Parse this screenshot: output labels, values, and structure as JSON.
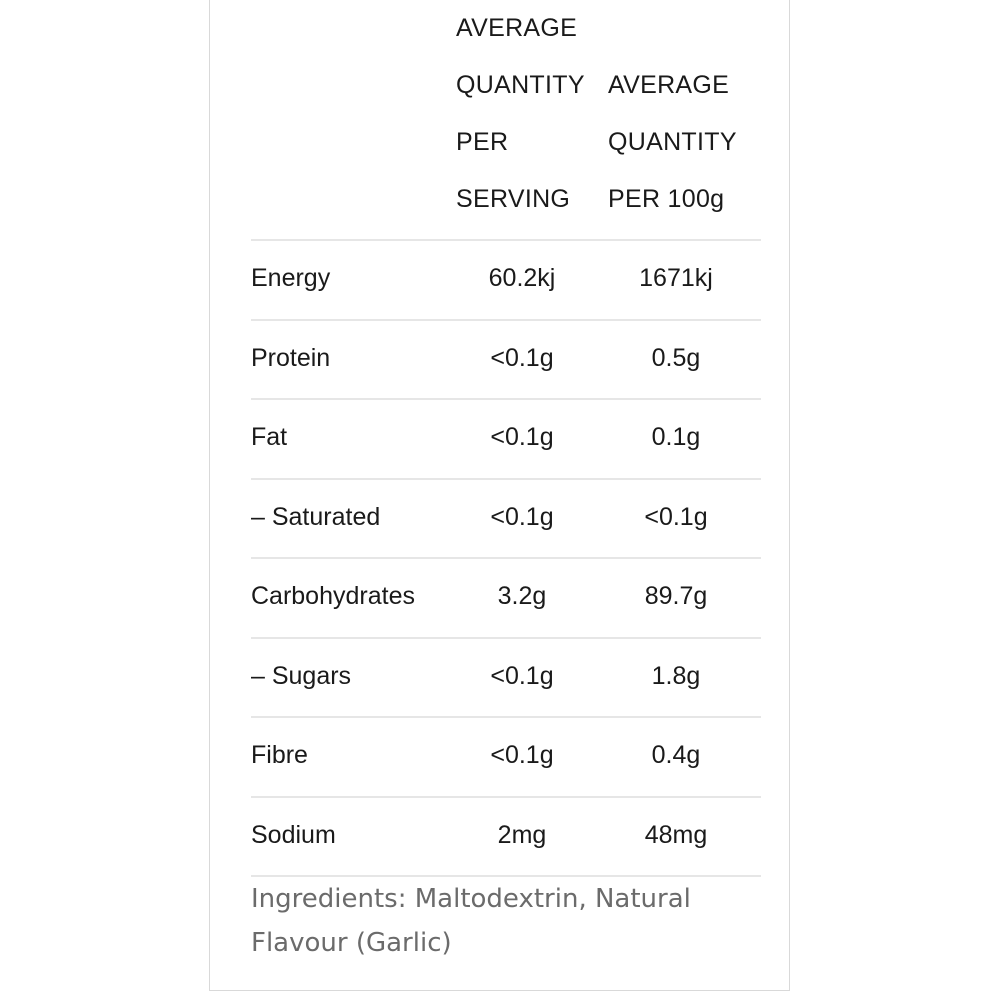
{
  "table": {
    "headers": [
      [
        "AVERAGE",
        "QUANTITY",
        "PER",
        "SERVING"
      ],
      [
        "AVERAGE",
        "QUANTITY",
        "PER 100g"
      ]
    ],
    "rows": [
      {
        "nutrient": "Energy",
        "per_serving": "60.2kj",
        "per_100g": "1671kj"
      },
      {
        "nutrient": "Protein",
        "per_serving": "<0.1g",
        "per_100g": "0.5g"
      },
      {
        "nutrient": "Fat",
        "per_serving": "<0.1g",
        "per_100g": "0.1g"
      },
      {
        "nutrient": "– Saturated",
        "per_serving": "<0.1g",
        "per_100g": "<0.1g"
      },
      {
        "nutrient": "Carbohydrates",
        "per_serving": "3.2g",
        "per_100g": "89.7g"
      },
      {
        "nutrient": "– Sugars",
        "per_serving": "<0.1g",
        "per_100g": "1.8g"
      },
      {
        "nutrient": "Fibre",
        "per_serving": "<0.1g",
        "per_100g": "0.4g"
      },
      {
        "nutrient": "Sodium",
        "per_serving": "2mg",
        "per_100g": "48mg"
      }
    ]
  },
  "ingredients": "Ingredients: Maltodextrin, Natural Flavour (Garlic)"
}
